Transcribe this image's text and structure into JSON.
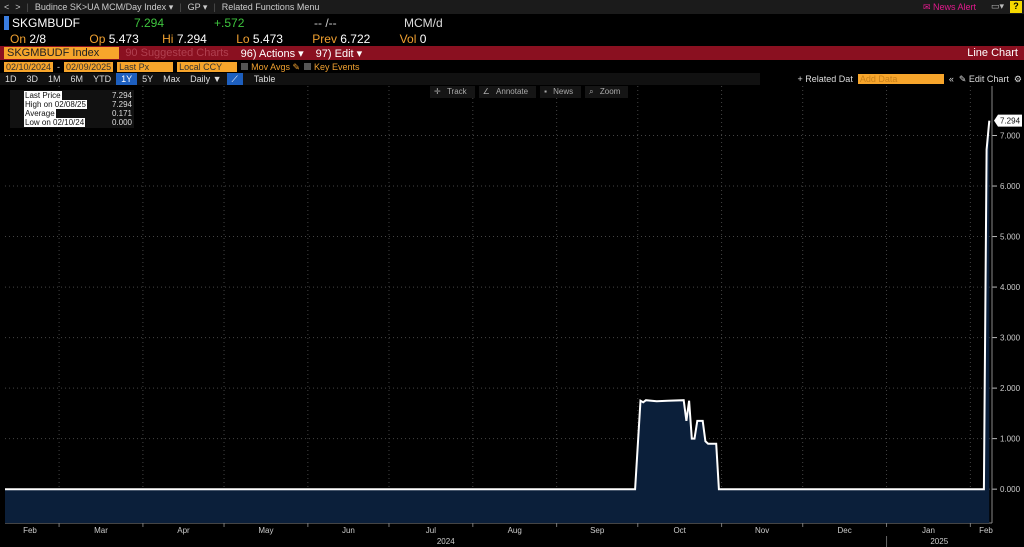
{
  "nav": {
    "title": "Budince SK>UA MCM/Day Index",
    "gp": "GP",
    "related": "Related Functions Menu",
    "news_alert": "News Alert",
    "help": "?"
  },
  "quote": {
    "ticker": "SKGMBUDF",
    "last": "7.294",
    "change": "+.572",
    "time": "-- /--",
    "unit": "MCM/d",
    "on_label": "On",
    "on": "2/8",
    "op_label": "Op",
    "op": "5.473",
    "hi_label": "Hi",
    "hi": "7.294",
    "lo_label": "Lo",
    "lo": "5.473",
    "prev_label": "Prev",
    "prev": "6.722",
    "vol_label": "Vol",
    "vol": "0"
  },
  "menubar": {
    "security": "SKGMBUDF Index",
    "suggested": "90 Suggested Charts",
    "actions": "96) Actions",
    "edit": "97) Edit",
    "chart_type": "Line Chart"
  },
  "controls": {
    "start": "02/10/2024",
    "end": "02/09/2025",
    "field": "Last Px",
    "currency": "Local CCY",
    "mov_avgs": "Mov Avgs",
    "key_events": "Key Events"
  },
  "periods": [
    "1D",
    "3D",
    "1M",
    "6M",
    "YTD",
    "1Y",
    "5Y",
    "Max",
    "Daily ▼"
  ],
  "active_period": "1Y",
  "table": "Table",
  "right_tools": {
    "related": "+ Related Dat",
    "add_data_placeholder": "Add Data",
    "edit_chart": "Edit Chart"
  },
  "chart_tools": [
    "Track",
    "Annotate",
    "News",
    "Zoom"
  ],
  "legend": [
    {
      "label": "Last Price",
      "value": "7.294"
    },
    {
      "label": "High on 02/08/25",
      "value": "7.294"
    },
    {
      "label": "Average",
      "value": "0.171"
    },
    {
      "label": "Low on 02/10/24",
      "value": "0.000"
    }
  ],
  "colors": {
    "line": "#ffffff",
    "fill": "#0b1f3a",
    "menubar": "#8a1020",
    "accent": "#f7a52b"
  },
  "chart_data": {
    "type": "area",
    "series": [
      {
        "points": [
          [
            "2024-02-10",
            0
          ],
          [
            "2024-09-30",
            0
          ],
          [
            "2024-10-02",
            1.75
          ],
          [
            "2024-10-03",
            1.72
          ],
          [
            "2024-10-04",
            1.76
          ],
          [
            "2024-10-08",
            1.74
          ],
          [
            "2024-10-12",
            1.75
          ],
          [
            "2024-10-18",
            1.76
          ],
          [
            "2024-10-19",
            1.35
          ],
          [
            "2024-10-20",
            1.75
          ],
          [
            "2024-10-21",
            1.0
          ],
          [
            "2024-10-22",
            1.0
          ],
          [
            "2024-10-23",
            1.35
          ],
          [
            "2024-10-25",
            1.35
          ],
          [
            "2024-10-26",
            0.95
          ],
          [
            "2024-10-27",
            0.9
          ],
          [
            "2024-10-30",
            0.9
          ],
          [
            "2024-10-31",
            0
          ],
          [
            "2025-02-06",
            0
          ],
          [
            "2025-02-07",
            6.722
          ],
          [
            "2025-02-08",
            7.294
          ]
        ]
      }
    ],
    "xlim": [
      "2024-02-10",
      "2025-02-09"
    ],
    "ylim": [
      -0.67,
      7.98
    ],
    "yticks": [
      "0.000",
      "1.000",
      "2.000",
      "3.000",
      "4.000",
      "5.000",
      "6.000",
      "7.000"
    ],
    "xticks": [
      "Feb",
      "Mar",
      "Apr",
      "May",
      "Jun",
      "Jul",
      "Aug",
      "Sep",
      "Oct",
      "Nov",
      "Dec",
      "Jan",
      "Feb"
    ],
    "years": [
      "2024",
      "2025"
    ],
    "last_label": "7.294",
    "grid": true
  }
}
